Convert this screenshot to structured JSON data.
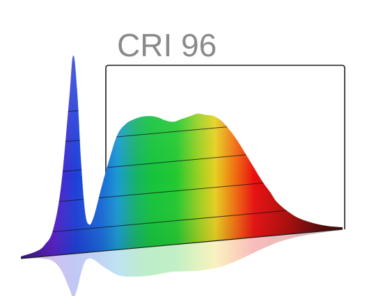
{
  "chart_data": {
    "type": "area",
    "title": "CRI 96",
    "xlabel": "",
    "ylabel": "",
    "x": [
      380,
      400,
      410,
      420,
      430,
      440,
      445,
      450,
      455,
      460,
      465,
      470,
      475,
      480,
      490,
      500,
      510,
      520,
      530,
      540,
      550,
      560,
      570,
      580,
      590,
      600,
      610,
      620,
      630,
      640,
      650,
      660,
      670,
      680,
      690,
      700,
      720,
      740,
      760,
      780
    ],
    "values": [
      0.01,
      0.03,
      0.06,
      0.13,
      0.35,
      0.78,
      1.0,
      0.82,
      0.45,
      0.2,
      0.14,
      0.17,
      0.24,
      0.32,
      0.46,
      0.58,
      0.63,
      0.65,
      0.66,
      0.66,
      0.65,
      0.63,
      0.62,
      0.63,
      0.64,
      0.65,
      0.64,
      0.63,
      0.6,
      0.55,
      0.49,
      0.42,
      0.35,
      0.28,
      0.22,
      0.16,
      0.09,
      0.05,
      0.025,
      0.01
    ],
    "ylim": [
      0,
      1
    ],
    "xlim": [
      380,
      780
    ],
    "colors": {
      "violet": "#5a1fc8",
      "blue": "#1d4ae0",
      "cyan": "#1a9ad0",
      "green": "#14c23c",
      "yellow": "#e6d020",
      "orange": "#f07010",
      "red": "#e81010",
      "dark_red": "#3a0606",
      "frame": "#1a1a1a",
      "label": "#8a8a8a"
    }
  }
}
